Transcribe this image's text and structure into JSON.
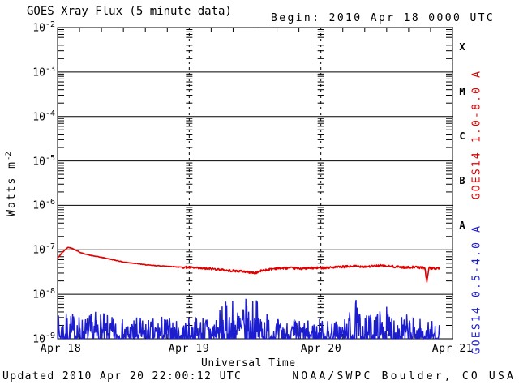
{
  "header": {
    "title": "GOES Xray Flux (5 minute data)",
    "begin": "Begin:  2010 Apr 18 0000 UTC"
  },
  "y_axis": {
    "title_main": "Watts m",
    "title_sup": "-2",
    "tick_exponents": [
      -2,
      -3,
      -4,
      -5,
      -6,
      -7,
      -8,
      -9
    ]
  },
  "x_axis": {
    "labels": [
      "Apr 18",
      "Apr 19",
      "Apr 20",
      "Apr 21"
    ],
    "title": "Universal Time"
  },
  "right_axis": {
    "class_letters": [
      "X",
      "M",
      "C",
      "B",
      "A"
    ],
    "long_channel_label": "GOES14 1.0-8.0 A",
    "short_channel_label": "GOES14 0.5-4.0 A"
  },
  "footer": {
    "updated": "Updated 2010 Apr 20 22:00:12 UTC",
    "agency": "NOAA/SWPC Boulder, CO USA"
  },
  "colors": {
    "long_channel": "#e00000",
    "short_channel": "#1d1dd0",
    "frame": "#000000",
    "background": "#ffffff"
  },
  "chart_data": {
    "type": "line",
    "title": "GOES Xray Flux (5 minute data)",
    "xlabel": "Universal Time",
    "ylabel": "Watts m^-2",
    "y_scale": "log",
    "ylim": [
      1e-09,
      0.01
    ],
    "x_range": [
      "2010 Apr 18 0000 UTC",
      "2010 Apr 21 0000 UTC"
    ],
    "x_days": 3,
    "x_minor_tick_hours": 4,
    "grid": {
      "horizontal_decade_lines": true,
      "vertical_day_lines": "dashed"
    },
    "flux_classes": [
      {
        "label": "X",
        "range": [
          0.0001,
          0.001
        ]
      },
      {
        "label": "M",
        "range": [
          1e-05,
          0.0001
        ]
      },
      {
        "label": "C",
        "range": [
          1e-06,
          1e-05
        ]
      },
      {
        "label": "B",
        "range": [
          1e-07,
          1e-06
        ]
      },
      {
        "label": "A",
        "range": [
          1e-08,
          1e-07
        ]
      }
    ],
    "sample_interval_minutes": 5,
    "data_end_t_days": 2.905,
    "series": [
      {
        "name": "GOES14 1.0-8.0 A",
        "color": "#e00000",
        "style": "trend_with_jitter",
        "jitter_log10": {
          "early": 0.006,
          "late": 0.025,
          "transition_t": 0.95
        },
        "points": [
          [
            0.0,
            6.5e-08
          ],
          [
            0.04,
            9e-08
          ],
          [
            0.08,
            1.15e-07
          ],
          [
            0.12,
            1.05e-07
          ],
          [
            0.18,
            8.5e-08
          ],
          [
            0.25,
            7.5e-08
          ],
          [
            0.33,
            6.8e-08
          ],
          [
            0.42,
            6e-08
          ],
          [
            0.5,
            5.3e-08
          ],
          [
            0.58,
            5e-08
          ],
          [
            0.67,
            4.6e-08
          ],
          [
            0.75,
            4.4e-08
          ],
          [
            0.83,
            4.3e-08
          ],
          [
            0.92,
            4.1e-08
          ],
          [
            1.0,
            4e-08
          ],
          [
            1.1,
            3.8e-08
          ],
          [
            1.2,
            3.7e-08
          ],
          [
            1.3,
            3.4e-08
          ],
          [
            1.4,
            3.3e-08
          ],
          [
            1.5,
            3e-08
          ],
          [
            1.55,
            3.4e-08
          ],
          [
            1.65,
            3.8e-08
          ],
          [
            1.75,
            3.9e-08
          ],
          [
            1.85,
            3.8e-08
          ],
          [
            1.95,
            3.9e-08
          ],
          [
            2.05,
            4e-08
          ],
          [
            2.15,
            4.1e-08
          ],
          [
            2.25,
            4.3e-08
          ],
          [
            2.35,
            4.2e-08
          ],
          [
            2.45,
            4.4e-08
          ],
          [
            2.55,
            4.2e-08
          ],
          [
            2.65,
            4e-08
          ],
          [
            2.7,
            4.1e-08
          ],
          [
            2.75,
            4e-08
          ],
          [
            2.79,
            3.9e-08
          ],
          [
            2.805,
            1.9e-08
          ],
          [
            2.82,
            3.9e-08
          ],
          [
            2.87,
            3.8e-08
          ],
          [
            2.905,
            3.9e-08
          ]
        ]
      },
      {
        "name": "GOES14 0.5-4.0 A",
        "color": "#1d1dd0",
        "style": "noise_spikes",
        "baseline": 1e-09,
        "envelope": [
          [
            0.0,
            3.5e-09
          ],
          [
            0.1,
            4.2e-09
          ],
          [
            0.2,
            3.2e-09
          ],
          [
            0.3,
            4.5e-09
          ],
          [
            0.4,
            3.2e-09
          ],
          [
            0.5,
            2.8e-09
          ],
          [
            0.6,
            3.2e-09
          ],
          [
            0.7,
            2.8e-09
          ],
          [
            0.8,
            3.6e-09
          ],
          [
            0.9,
            2.6e-09
          ],
          [
            1.0,
            3e-09
          ],
          [
            1.1,
            3.6e-09
          ],
          [
            1.2,
            4.5e-09
          ],
          [
            1.27,
            6.5e-09
          ],
          [
            1.33,
            9.5e-09
          ],
          [
            1.4,
            7.5e-09
          ],
          [
            1.49,
            9.5e-09
          ],
          [
            1.55,
            6e-09
          ],
          [
            1.62,
            3.4e-09
          ],
          [
            1.7,
            2.6e-09
          ],
          [
            1.8,
            2.8e-09
          ],
          [
            1.9,
            2.6e-09
          ],
          [
            2.0,
            3e-09
          ],
          [
            2.1,
            2.6e-09
          ],
          [
            2.2,
            3.2e-09
          ],
          [
            2.26,
            8.5e-09
          ],
          [
            2.32,
            3.2e-09
          ],
          [
            2.4,
            4.2e-09
          ],
          [
            2.5,
            5.5e-09
          ],
          [
            2.6,
            4e-09
          ],
          [
            2.7,
            3.2e-09
          ],
          [
            2.8,
            2.8e-09
          ],
          [
            2.905,
            2.2e-09
          ]
        ]
      }
    ]
  }
}
